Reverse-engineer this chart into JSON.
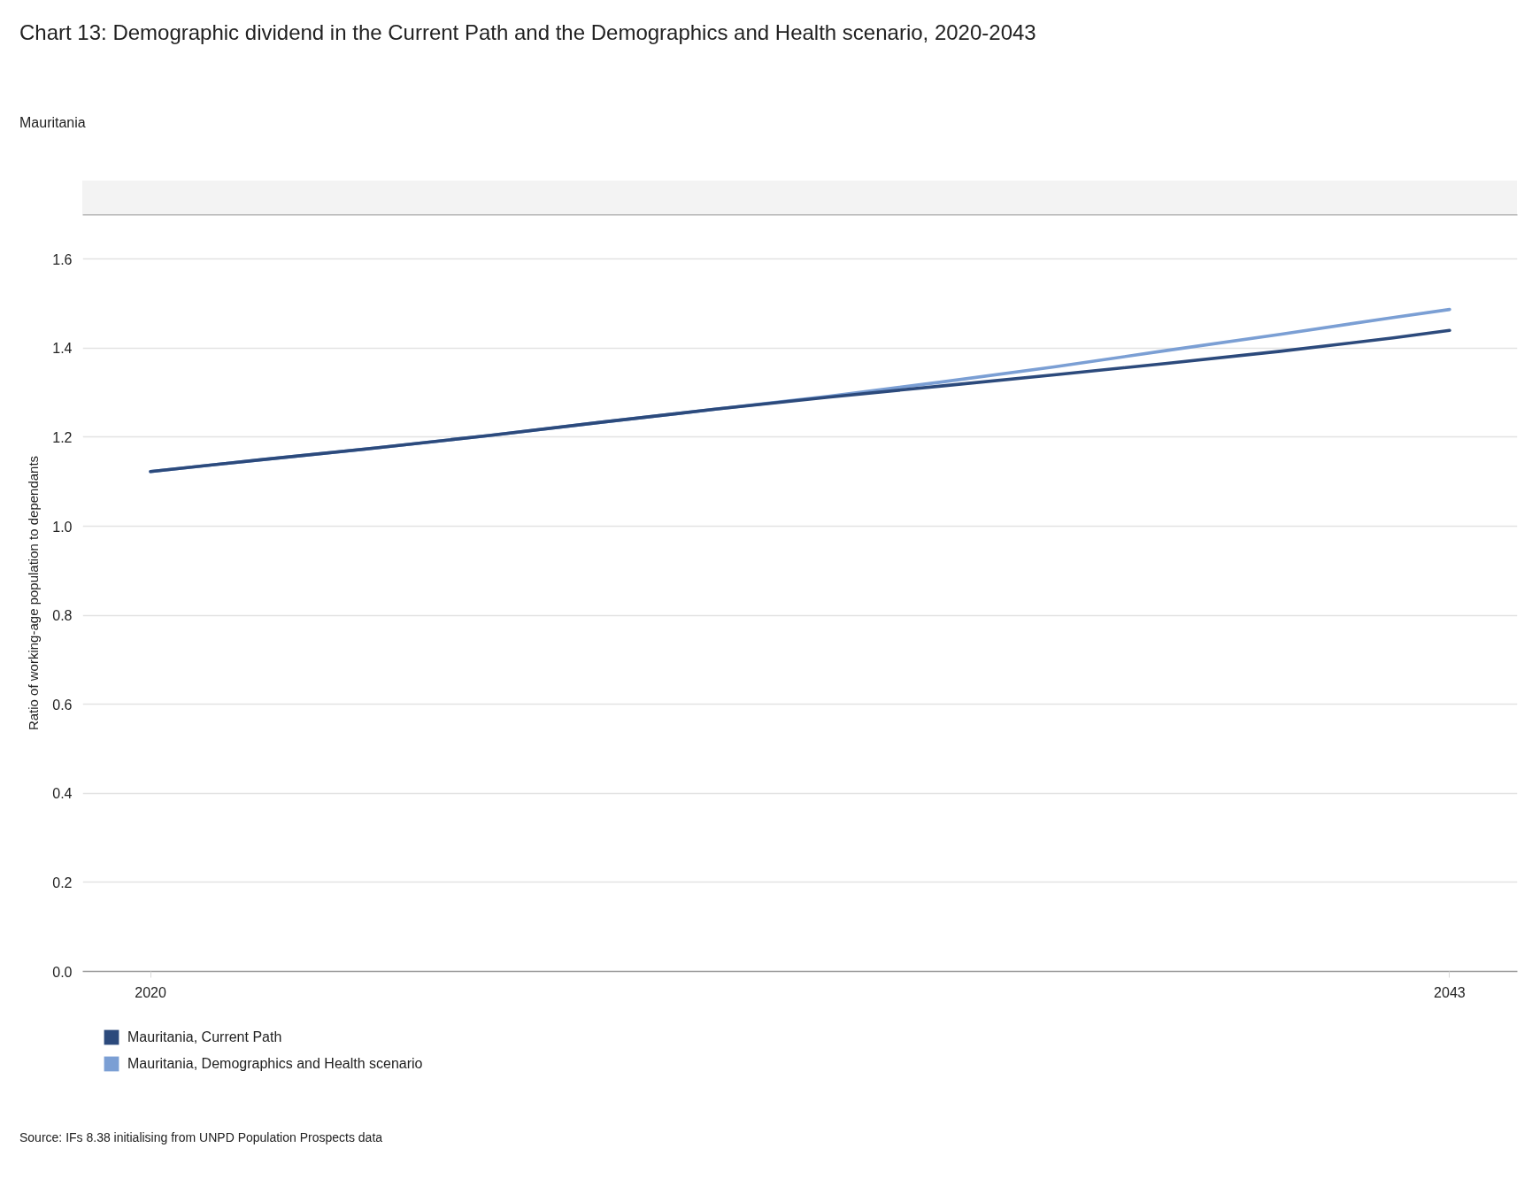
{
  "chart_data": {
    "type": "line",
    "title": "Chart 13: Demographic dividend in the Current Path and the Demographics and Health scenario, 2020-2043",
    "subtitle": "Mauritania",
    "ylabel": "Ratio of working-age population to dependants",
    "x": [
      2020,
      2022,
      2024,
      2026,
      2028,
      2030,
      2032,
      2034,
      2036,
      2038,
      2040,
      2042,
      2043
    ],
    "series": [
      {
        "name": "Mauritania, Current Path",
        "color": "#2c4a7c",
        "values": [
          1.123,
          1.15,
          1.176,
          1.204,
          1.234,
          1.263,
          1.29,
          1.315,
          1.34,
          1.366,
          1.393,
          1.423,
          1.44
        ]
      },
      {
        "name": "Mauritania, Demographics and Health scenario",
        "color": "#7b9fd4",
        "values": [
          1.123,
          1.15,
          1.176,
          1.204,
          1.234,
          1.263,
          1.292,
          1.324,
          1.358,
          1.395,
          1.431,
          1.469,
          1.487
        ]
      }
    ],
    "xlim": [
      2018.8,
      2044.2
    ],
    "xticks": [
      2020,
      2043
    ],
    "ylim": [
      0,
      1.7
    ],
    "yticks": [
      {
        "value": 0,
        "label": "0.0"
      },
      0.2,
      0.4,
      0.6,
      0.8,
      {
        "value": 1,
        "label": "1.0"
      },
      1.2,
      1.4,
      1.6
    ],
    "grid": "y",
    "legend": "bottom left",
    "annotations": [
      "Source: IFs 8.38 initialising from UNPD Population Prospects data"
    ]
  }
}
